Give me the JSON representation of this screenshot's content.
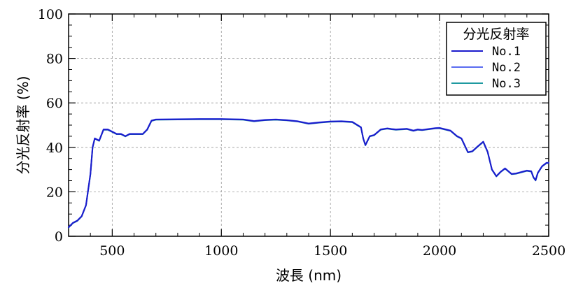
{
  "chart_data": {
    "type": "line",
    "xlabel": "波長 (nm)",
    "ylabel": "分光反射率 (%)",
    "xlim": [
      300,
      2500
    ],
    "ylim": [
      0,
      100
    ],
    "x_ticks": [
      500,
      1000,
      1500,
      2000,
      2500
    ],
    "y_ticks": [
      0,
      20,
      40,
      60,
      80,
      100
    ],
    "grid": true,
    "legend": {
      "title": "分光反射率",
      "placement": "top-right"
    },
    "colors": {
      "No.1": "#1a1acc",
      "No.2": "#5a6cf0",
      "No.3": "#1f9aa0"
    },
    "series": [
      {
        "name": "No.1",
        "x": [
          300,
          320,
          340,
          360,
          380,
          400,
          410,
          420,
          440,
          460,
          480,
          500,
          520,
          540,
          560,
          580,
          600,
          640,
          660,
          680,
          700,
          800,
          900,
          1000,
          1100,
          1150,
          1200,
          1250,
          1300,
          1350,
          1400,
          1450,
          1500,
          1550,
          1600,
          1640,
          1650,
          1660,
          1680,
          1700,
          1730,
          1760,
          1780,
          1800,
          1850,
          1880,
          1900,
          1920,
          1950,
          1980,
          2000,
          2050,
          2080,
          2100,
          2130,
          2150,
          2170,
          2200,
          2220,
          2240,
          2260,
          2280,
          2300,
          2330,
          2350,
          2380,
          2400,
          2420,
          2430,
          2440,
          2450,
          2470,
          2490,
          2500
        ],
        "y": [
          4,
          6,
          7,
          9,
          14,
          28,
          40,
          44,
          43,
          48,
          48,
          47,
          46,
          46,
          45,
          46,
          46,
          46,
          48,
          52,
          52.5,
          52.6,
          52.7,
          52.7,
          52.5,
          51.8,
          52.3,
          52.5,
          52.2,
          51.7,
          50.7,
          51.2,
          51.6,
          51.7,
          51.4,
          49,
          44,
          41,
          45,
          45.5,
          48,
          48.5,
          48.2,
          48,
          48.3,
          47.5,
          48,
          47.8,
          48.2,
          48.6,
          48.7,
          47.5,
          45,
          44,
          37.8,
          38.2,
          40,
          42.5,
          38,
          30,
          27,
          29,
          30.5,
          28,
          28.2,
          29,
          29.5,
          29.2,
          26.5,
          25.2,
          28.5,
          31.5,
          33,
          33
        ]
      },
      {
        "name": "No.2",
        "x": [
          300,
          320,
          340,
          360,
          380,
          400,
          410,
          420,
          440,
          460,
          480,
          500,
          520,
          540,
          560,
          580,
          600,
          640,
          660,
          680,
          700,
          800,
          900,
          1000,
          1100,
          1150,
          1200,
          1250,
          1300,
          1350,
          1400,
          1450,
          1500,
          1550,
          1600,
          1640,
          1650,
          1660,
          1680,
          1700,
          1730,
          1760,
          1780,
          1800,
          1850,
          1880,
          1900,
          1920,
          1950,
          1980,
          2000,
          2050,
          2080,
          2100,
          2130,
          2150,
          2170,
          2200,
          2220,
          2240,
          2260,
          2280,
          2300,
          2330,
          2350,
          2380,
          2400,
          2420,
          2430,
          2440,
          2450,
          2470,
          2490,
          2500
        ],
        "y": [
          4.1,
          6.1,
          7.1,
          9.1,
          14.1,
          28.2,
          40.2,
          44.1,
          43.1,
          48.1,
          48.1,
          47.1,
          46.1,
          46.1,
          45.1,
          46.1,
          46.1,
          46.1,
          48.1,
          52.1,
          52.6,
          52.7,
          52.8,
          52.8,
          52.6,
          51.9,
          52.4,
          52.6,
          52.3,
          51.8,
          50.8,
          51.3,
          51.7,
          51.8,
          51.5,
          49.1,
          44.1,
          41.1,
          45.1,
          45.6,
          48.1,
          48.6,
          48.3,
          48.1,
          48.4,
          47.6,
          48.1,
          47.9,
          48.3,
          48.7,
          48.8,
          47.6,
          45.1,
          44.1,
          37.9,
          38.3,
          40.1,
          42.6,
          38.1,
          30.1,
          27.1,
          29.1,
          30.6,
          28.1,
          28.3,
          29.1,
          29.6,
          29.3,
          26.6,
          25.3,
          28.6,
          31.6,
          33.1,
          33.1
        ]
      },
      {
        "name": "No.3",
        "x": [
          300,
          320,
          340,
          360,
          380,
          400,
          410,
          420,
          440,
          460,
          480,
          500,
          520,
          540,
          560,
          580,
          600,
          640,
          660,
          680,
          700,
          800,
          900,
          1000,
          1100,
          1150,
          1200,
          1250,
          1300,
          1350,
          1400,
          1450,
          1500,
          1550,
          1600,
          1640,
          1650,
          1660,
          1680,
          1700,
          1730,
          1760,
          1780,
          1800,
          1850,
          1880,
          1900,
          1920,
          1950,
          1980,
          2000,
          2050,
          2080,
          2100,
          2130,
          2150,
          2170,
          2200,
          2220,
          2240,
          2260,
          2280,
          2300,
          2330,
          2350,
          2380,
          2400,
          2420,
          2430,
          2440,
          2450,
          2470,
          2490,
          2500
        ],
        "y": [
          3.9,
          5.9,
          6.9,
          8.9,
          13.9,
          27.8,
          39.8,
          43.9,
          42.9,
          47.9,
          47.9,
          46.9,
          45.9,
          45.9,
          44.9,
          45.9,
          45.9,
          45.9,
          47.9,
          51.9,
          52.4,
          52.5,
          52.6,
          52.6,
          52.4,
          51.7,
          52.2,
          52.4,
          52.1,
          51.6,
          50.6,
          51.1,
          51.5,
          51.6,
          51.3,
          48.9,
          43.9,
          40.9,
          44.9,
          45.4,
          47.9,
          48.4,
          48.1,
          47.9,
          48.2,
          47.4,
          47.9,
          47.7,
          48.1,
          48.5,
          48.6,
          47.4,
          44.9,
          43.9,
          37.7,
          38.1,
          39.9,
          42.4,
          37.9,
          29.9,
          26.9,
          28.9,
          30.4,
          27.9,
          28.1,
          28.9,
          29.4,
          29.1,
          26.4,
          25.1,
          28.4,
          31.4,
          32.9,
          32.9
        ]
      }
    ]
  }
}
